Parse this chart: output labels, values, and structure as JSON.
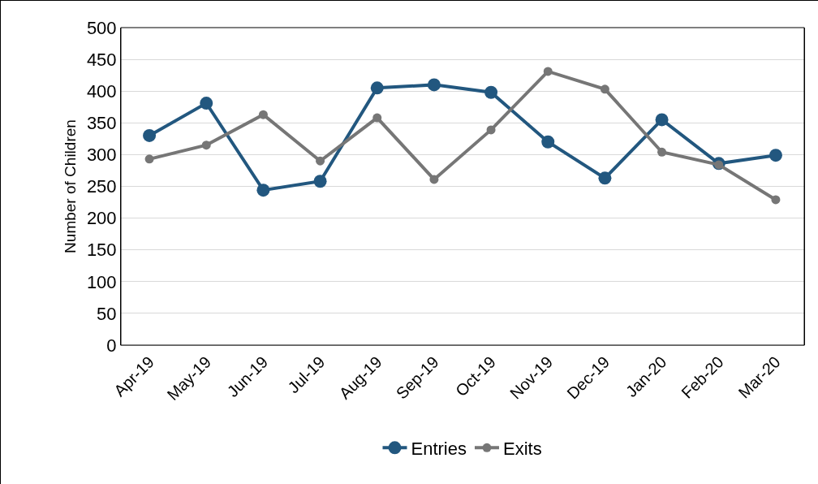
{
  "chart_data": {
    "type": "line",
    "ylabel": "Number of Children",
    "categories": [
      "Apr-19",
      "May-19",
      "Jun-19",
      "Jul-19",
      "Aug-19",
      "Sep-19",
      "Oct-19",
      "Nov-19",
      "Dec-19",
      "Jan-20",
      "Feb-20",
      "Mar-20"
    ],
    "series": [
      {
        "name": "Entries",
        "color": "#22577f",
        "values": [
          330,
          381,
          244,
          258,
          405,
          410,
          398,
          320,
          263,
          355,
          286,
          299
        ]
      },
      {
        "name": "Exits",
        "color": "#767676",
        "values": [
          293,
          315,
          363,
          290,
          358,
          261,
          339,
          431,
          403,
          304,
          284,
          229
        ]
      }
    ],
    "ylim": [
      0,
      500
    ],
    "yticks": [
      0,
      50,
      100,
      150,
      200,
      250,
      300,
      350,
      400,
      450,
      500
    ],
    "grid": "y",
    "legend": "bottom",
    "marker": "circle",
    "line_style": "solid"
  }
}
